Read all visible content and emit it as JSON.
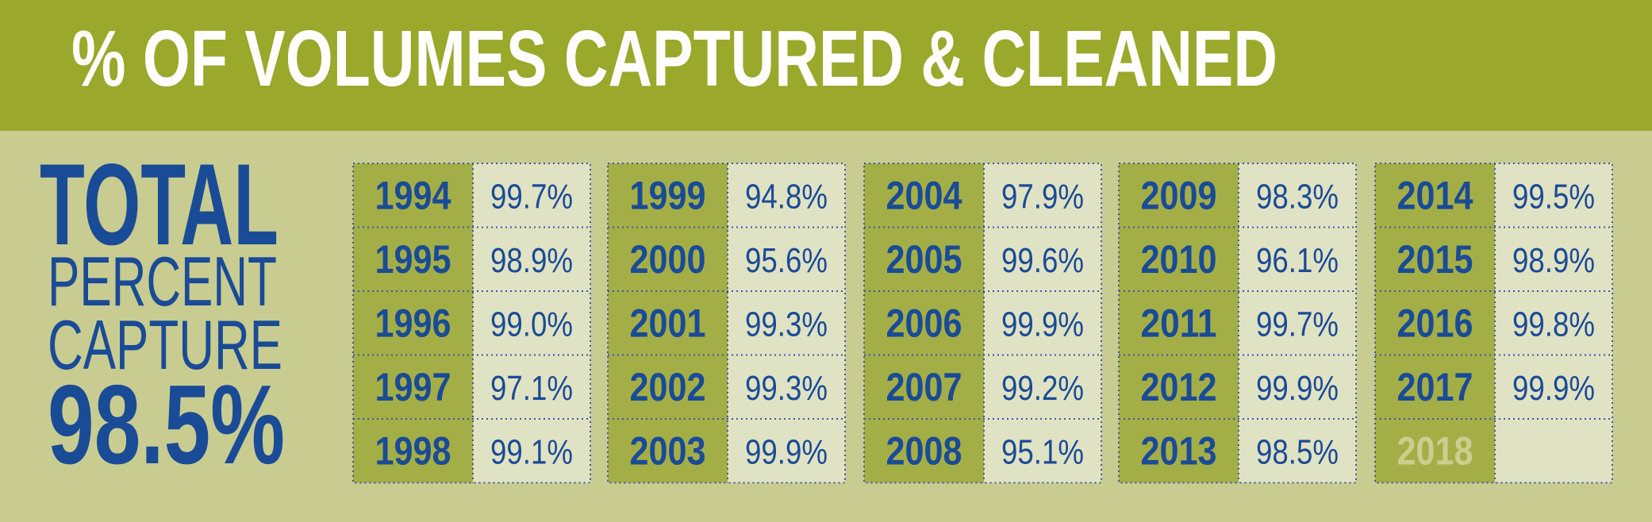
{
  "header": {
    "title": "% OF VOLUMES CAPTURED & CLEANED"
  },
  "summary": {
    "total": "TOTAL",
    "line1": "PERCENT",
    "line2": "CAPTURE",
    "value": "98.5%"
  },
  "table": {
    "groups": [
      {
        "rows": [
          [
            "1994",
            "99.7%"
          ],
          [
            "1995",
            "98.9%"
          ],
          [
            "1996",
            "99.0%"
          ],
          [
            "1997",
            "97.1%"
          ],
          [
            "1998",
            "99.1%"
          ]
        ]
      },
      {
        "rows": [
          [
            "1999",
            "94.8%"
          ],
          [
            "2000",
            "95.6%"
          ],
          [
            "2001",
            "99.3%"
          ],
          [
            "2002",
            "99.3%"
          ],
          [
            "2003",
            "99.9%"
          ]
        ]
      },
      {
        "rows": [
          [
            "2004",
            "97.9%"
          ],
          [
            "2005",
            "99.6%"
          ],
          [
            "2006",
            "99.9%"
          ],
          [
            "2007",
            "99.2%"
          ],
          [
            "2008",
            "95.1%"
          ]
        ]
      },
      {
        "rows": [
          [
            "2009",
            "98.3%"
          ],
          [
            "2010",
            "96.1%"
          ],
          [
            "2011",
            "99.7%"
          ],
          [
            "2012",
            "99.9%"
          ],
          [
            "2013",
            "98.5%"
          ]
        ]
      },
      {
        "rows": [
          [
            "2014",
            "99.5%"
          ],
          [
            "2015",
            "98.9%"
          ],
          [
            "2016",
            "99.8%"
          ],
          [
            "2017",
            "99.9%"
          ],
          [
            "2018"
          ]
        ]
      }
    ]
  }
}
